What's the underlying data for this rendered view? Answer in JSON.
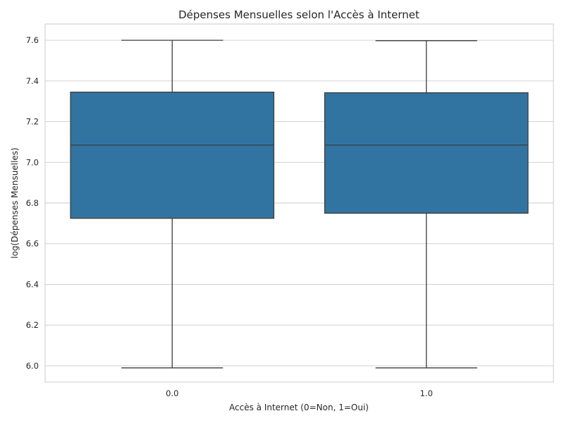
{
  "chart_data": {
    "type": "box",
    "title": "Dépenses Mensuelles selon l'Accès à Internet",
    "xlabel": "Accès à Internet (0=Non, 1=Oui)",
    "ylabel": "log(Dépenses Mensuelles)",
    "ylim": [
      5.92,
      7.68
    ],
    "yticks": [
      "6.0",
      "6.2",
      "6.4",
      "6.6",
      "6.8",
      "7.0",
      "7.2",
      "7.4",
      "7.6"
    ],
    "categories": [
      "0.0",
      "1.0"
    ],
    "boxes": [
      {
        "category": "0.0",
        "min": 5.99,
        "q1": 6.725,
        "median": 7.085,
        "q3": 7.345,
        "max": 7.6
      },
      {
        "category": "1.0",
        "min": 5.99,
        "q1": 6.75,
        "median": 7.085,
        "q3": 7.342,
        "max": 7.598
      }
    ],
    "box_color": "#3274a1",
    "grid": true,
    "legend": "none"
  }
}
